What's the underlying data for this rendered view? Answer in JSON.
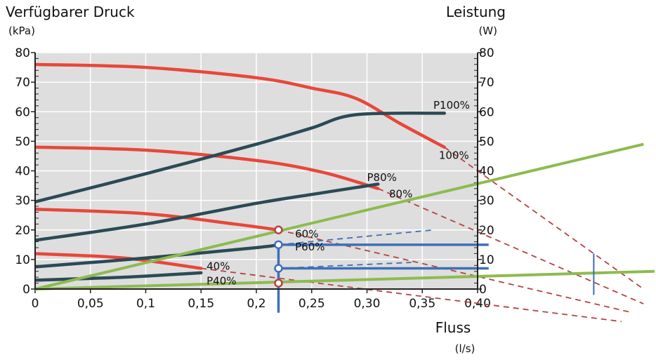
{
  "chart_data": {
    "type": "line",
    "title": "",
    "y_left": {
      "label": "Verfügbarer Druck",
      "unit": "(kPa)",
      "ticks": [
        "0",
        "10",
        "20",
        "30",
        "40",
        "50",
        "60",
        "70",
        "80"
      ],
      "range": [
        0,
        80
      ]
    },
    "y_right": {
      "label": "Leistung",
      "unit": "(W)",
      "ticks": [
        "0",
        "10",
        "20",
        "30",
        "40",
        "50",
        "60",
        "70",
        "80"
      ],
      "range": [
        0,
        80
      ]
    },
    "x": {
      "label": "Fluss",
      "unit": "(l/s)",
      "ticks": [
        "0",
        "0,05",
        "0,1",
        "0,15",
        "0,2",
        "0,25",
        "0,30",
        "0,35",
        "0,40"
      ],
      "range": [
        0,
        0.4
      ]
    },
    "grid": true,
    "colors": {
      "pressure": "#e8473a",
      "power": "#2b4a55",
      "system": "#8dbb4f",
      "helper": "#3f6fb5",
      "dashed": "#b5433f",
      "plot_bg": "#dedede"
    },
    "pressure_curves": [
      {
        "label": "100%",
        "points": [
          [
            0,
            76
          ],
          [
            0.1,
            75
          ],
          [
            0.2,
            71.5
          ],
          [
            0.25,
            68
          ],
          [
            0.29,
            64.5
          ],
          [
            0.33,
            56
          ],
          [
            0.37,
            48
          ]
        ]
      },
      {
        "label": "80%",
        "points": [
          [
            0,
            48
          ],
          [
            0.1,
            47
          ],
          [
            0.2,
            43.5
          ],
          [
            0.26,
            39.5
          ],
          [
            0.31,
            34
          ]
        ]
      },
      {
        "label": "60%",
        "points": [
          [
            0,
            27
          ],
          [
            0.1,
            25.5
          ],
          [
            0.18,
            22
          ],
          [
            0.22,
            20
          ]
        ]
      },
      {
        "label": "40%",
        "points": [
          [
            0,
            12
          ],
          [
            0.08,
            10.5
          ],
          [
            0.15,
            7
          ]
        ]
      }
    ],
    "power_curves": [
      {
        "label": "P100%",
        "points": [
          [
            0,
            29.5
          ],
          [
            0.1,
            39
          ],
          [
            0.2,
            49
          ],
          [
            0.25,
            54.5
          ],
          [
            0.29,
            59
          ],
          [
            0.37,
            59.5
          ]
        ]
      },
      {
        "label": "P80%",
        "points": [
          [
            0,
            16.5
          ],
          [
            0.1,
            22
          ],
          [
            0.2,
            29
          ],
          [
            0.25,
            32
          ],
          [
            0.31,
            35.5
          ]
        ]
      },
      {
        "label": "P60%",
        "points": [
          [
            0,
            7.5
          ],
          [
            0.1,
            10.5
          ],
          [
            0.2,
            14
          ],
          [
            0.22,
            15
          ]
        ]
      },
      {
        "label": "P40%",
        "points": [
          [
            0,
            3
          ],
          [
            0.08,
            4
          ],
          [
            0.15,
            5.5
          ]
        ]
      }
    ],
    "system_curves": [
      {
        "points": [
          [
            0,
            0
          ],
          [
            0.55,
            49
          ]
        ]
      },
      {
        "points": [
          [
            0,
            0
          ],
          [
            0.56,
            6
          ]
        ]
      }
    ],
    "operating_point": {
      "x": 0.22,
      "pressure": 20,
      "power": 15,
      "power2": 7,
      "low": 2
    },
    "flow_marker": 0.22
  }
}
